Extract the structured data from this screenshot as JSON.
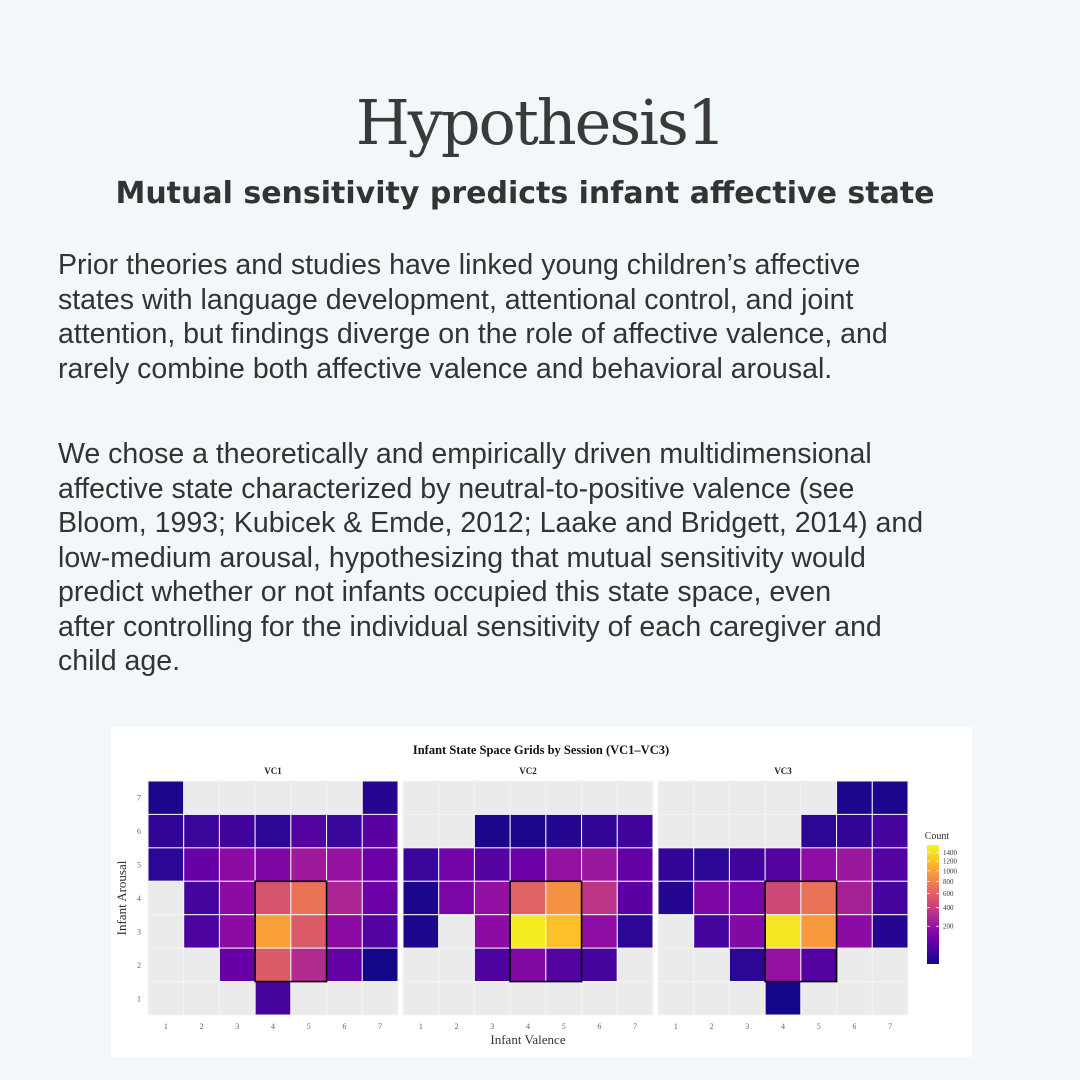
{
  "header": {
    "title": "Hypothesis1",
    "subtitle": "Mutual sensitivity predicts infant affective state"
  },
  "body": {
    "paragraph1": [
      "Prior theories and studies have linked young children’s affective",
      "states with language development, attentional control, and joint",
      "attention, but findings diverge on the role of affective valence, and",
      "rarely combine both affective valence and behavioral arousal."
    ],
    "paragraph2": [
      "We chose a theoretically and empirically driven multidimensional",
      "affective state characterized by neutral-to-positive valence (see",
      "Bloom, 1993; Kubicek & Emde, 2012; Laake and Bridgett, 2014) and",
      "low-medium arousal, hypothesizing that mutual sensitivity would",
      "predict whether or not infants occupied this state space, even",
      "after controlling for the individual sensitivity of each caregiver and",
      "child age."
    ]
  },
  "chart_data": {
    "type": "heatmap",
    "title": "Infant State Space Grids by Session (VC1–VC3)",
    "xlabel": "Infant Valence",
    "ylabel": "Infant Arousal",
    "x_ticks": [
      "1",
      "2",
      "3",
      "4",
      "5",
      "6",
      "7"
    ],
    "y_ticks": [
      "1",
      "2",
      "3",
      "4",
      "5",
      "6",
      "7"
    ],
    "legend": {
      "title": "Count",
      "ticks": [
        "1400",
        "1200",
        "1000",
        "800",
        "600",
        "400",
        "200"
      ],
      "tick_values": [
        1400,
        1200,
        1000,
        800,
        600,
        400,
        200
      ],
      "scale": "sqrt",
      "range": [
        5,
        1580
      ],
      "colormap": "plasma",
      "placement": "right"
    },
    "highlight": {
      "valence": [
        4,
        5
      ],
      "arousal": [
        2,
        4
      ]
    },
    "empty_color": "#ebebeb",
    "panels": [
      {
        "name": "VC1",
        "rows_arousal_7_to_1": [
          [
            10,
            null,
            null,
            null,
            null,
            null,
            15
          ],
          [
            25,
            30,
            35,
            20,
            60,
            30,
            70
          ],
          [
            20,
            90,
            170,
            140,
            230,
            200,
            100
          ],
          [
            null,
            40,
            170,
            520,
            700,
            280,
            100
          ],
          [
            null,
            50,
            170,
            1000,
            560,
            170,
            60
          ],
          [
            null,
            null,
            90,
            560,
            300,
            80,
            8
          ],
          [
            null,
            null,
            null,
            40,
            null,
            null,
            null
          ]
        ]
      },
      {
        "name": "VC2",
        "rows_arousal_7_to_1": [
          [
            null,
            null,
            null,
            null,
            null,
            null,
            null
          ],
          [
            null,
            null,
            10,
            10,
            15,
            25,
            35
          ],
          [
            30,
            110,
            60,
            100,
            200,
            220,
            80
          ],
          [
            10,
            130,
            190,
            600,
            900,
            350,
            70
          ],
          [
            10,
            null,
            170,
            1500,
            1200,
            180,
            20
          ],
          [
            null,
            null,
            50,
            150,
            60,
            40,
            null
          ],
          [
            null,
            null,
            null,
            null,
            null,
            null,
            null
          ]
        ]
      },
      {
        "name": "VC3",
        "rows_arousal_7_to_1": [
          [
            null,
            null,
            null,
            null,
            null,
            10,
            10
          ],
          [
            null,
            null,
            null,
            null,
            20,
            25,
            40
          ],
          [
            25,
            20,
            35,
            60,
            180,
            220,
            60
          ],
          [
            15,
            140,
            120,
            450,
            700,
            260,
            40
          ],
          [
            null,
            40,
            150,
            1450,
            950,
            170,
            15
          ],
          [
            null,
            null,
            20,
            200,
            60,
            null,
            null
          ],
          [
            null,
            null,
            null,
            8,
            null,
            null,
            null
          ]
        ]
      }
    ]
  }
}
